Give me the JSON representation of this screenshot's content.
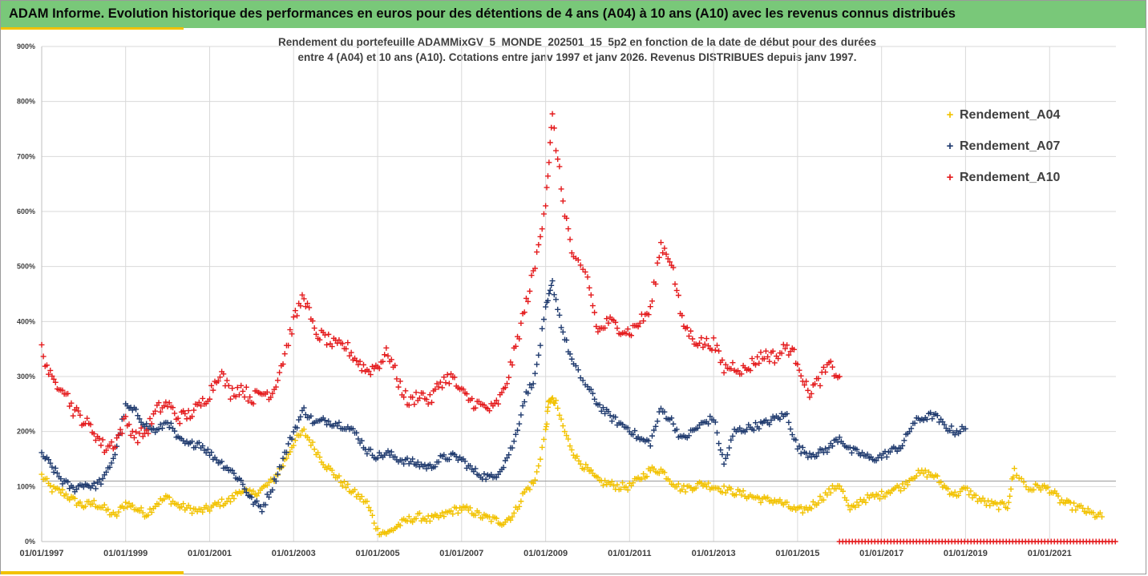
{
  "header": {
    "title": "ADAM Informe. Evolution historique des performances en euros pour des détentions de 4 ans (A04) à 10 ans (A10) avec les revenus connus distribués"
  },
  "chart_data": {
    "type": "scatter",
    "title_lines": [
      "Rendement du portefeuille ADAMMixGV_5_MONDE_202501_15_5p2 en fonction de la date de début pour des durées",
      "entre 4 (A04) et 10 ans (A10). Cotations entre janv 1997 et janv 2026. Revenus DISTRIBUES depuis janv 1997."
    ],
    "x_axis": {
      "type": "date",
      "range": [
        "1997-01-01",
        "2022-08-01"
      ],
      "tick_labels": [
        "01/01/1997",
        "01/01/1999",
        "01/01/2001",
        "01/01/2003",
        "01/01/2005",
        "01/01/2007",
        "01/01/2009",
        "01/01/2011",
        "01/01/2013",
        "01/01/2015",
        "01/01/2017",
        "01/01/2019",
        "01/01/2021"
      ]
    },
    "y_axis": {
      "range": [
        0,
        900
      ],
      "unit": "%",
      "tick_labels": [
        "0%",
        "100%",
        "200%",
        "300%",
        "400%",
        "500%",
        "600%",
        "700%",
        "800%",
        "900%"
      ]
    },
    "grid": "horizontal",
    "legend_position": "right",
    "reference_line": 110,
    "series": [
      {
        "name": "Rendement_A04",
        "color": "#f2c200",
        "points": [
          [
            "1997-01-01",
            120
          ],
          [
            "1997-04-01",
            95
          ],
          [
            "1997-07-01",
            90
          ],
          [
            "1997-10-01",
            75
          ],
          [
            "1998-01-01",
            65
          ],
          [
            "1998-04-01",
            70
          ],
          [
            "1998-07-01",
            60
          ],
          [
            "1998-10-01",
            45
          ],
          [
            "1999-01-01",
            70
          ],
          [
            "1999-04-01",
            60
          ],
          [
            "1999-07-01",
            50
          ],
          [
            "1999-10-01",
            70
          ],
          [
            "2000-01-01",
            80
          ],
          [
            "2000-04-01",
            65
          ],
          [
            "2000-07-01",
            60
          ],
          [
            "2000-10-01",
            55
          ],
          [
            "2001-01-01",
            60
          ],
          [
            "2001-04-01",
            70
          ],
          [
            "2001-07-01",
            75
          ],
          [
            "2001-10-01",
            95
          ],
          [
            "2002-01-01",
            85
          ],
          [
            "2002-04-01",
            95
          ],
          [
            "2002-07-01",
            110
          ],
          [
            "2002-10-01",
            140
          ],
          [
            "2003-01-01",
            180
          ],
          [
            "2003-04-01",
            200
          ],
          [
            "2003-07-01",
            170
          ],
          [
            "2003-10-01",
            140
          ],
          [
            "2004-01-01",
            120
          ],
          [
            "2004-04-01",
            100
          ],
          [
            "2004-07-01",
            85
          ],
          [
            "2004-10-01",
            70
          ],
          [
            "2005-01-01",
            20
          ],
          [
            "2005-04-01",
            15
          ],
          [
            "2005-07-01",
            30
          ],
          [
            "2005-10-01",
            40
          ],
          [
            "2006-01-01",
            45
          ],
          [
            "2006-04-01",
            40
          ],
          [
            "2006-07-01",
            45
          ],
          [
            "2006-10-01",
            55
          ],
          [
            "2007-01-01",
            60
          ],
          [
            "2007-04-01",
            55
          ],
          [
            "2007-07-01",
            45
          ],
          [
            "2007-10-01",
            40
          ],
          [
            "2008-01-01",
            35
          ],
          [
            "2008-04-01",
            50
          ],
          [
            "2008-07-01",
            90
          ],
          [
            "2008-10-01",
            110
          ],
          [
            "2009-01-01",
            200
          ],
          [
            "2009-02-01",
            260
          ],
          [
            "2009-04-01",
            250
          ],
          [
            "2009-07-01",
            190
          ],
          [
            "2009-10-01",
            150
          ],
          [
            "2010-01-01",
            130
          ],
          [
            "2010-04-01",
            110
          ],
          [
            "2010-07-01",
            105
          ],
          [
            "2010-10-01",
            100
          ],
          [
            "2011-01-01",
            100
          ],
          [
            "2011-04-01",
            115
          ],
          [
            "2011-07-01",
            130
          ],
          [
            "2011-10-01",
            130
          ],
          [
            "2012-01-01",
            110
          ],
          [
            "2012-04-01",
            95
          ],
          [
            "2012-07-01",
            100
          ],
          [
            "2012-10-01",
            105
          ],
          [
            "2013-01-01",
            100
          ],
          [
            "2013-04-01",
            95
          ],
          [
            "2013-07-01",
            90
          ],
          [
            "2013-10-01",
            85
          ],
          [
            "2014-01-01",
            80
          ],
          [
            "2014-04-01",
            75
          ],
          [
            "2014-07-01",
            75
          ],
          [
            "2014-10-01",
            65
          ],
          [
            "2015-01-01",
            55
          ],
          [
            "2015-04-01",
            60
          ],
          [
            "2015-07-01",
            75
          ],
          [
            "2015-10-01",
            90
          ],
          [
            "2016-01-01",
            105
          ],
          [
            "2016-04-01",
            55
          ],
          [
            "2016-07-01",
            75
          ],
          [
            "2016-10-01",
            80
          ],
          [
            "2017-01-01",
            85
          ],
          [
            "2017-04-01",
            95
          ],
          [
            "2017-07-01",
            100
          ],
          [
            "2017-10-01",
            120
          ],
          [
            "2018-01-01",
            125
          ],
          [
            "2018-04-01",
            120
          ],
          [
            "2018-07-01",
            100
          ],
          [
            "2018-10-01",
            85
          ],
          [
            "2019-01-01",
            95
          ],
          [
            "2019-04-01",
            80
          ],
          [
            "2019-07-01",
            70
          ],
          [
            "2019-10-01",
            65
          ],
          [
            "2020-01-01",
            65
          ],
          [
            "2020-03-01",
            130
          ],
          [
            "2020-07-01",
            95
          ],
          [
            "2020-10-01",
            100
          ],
          [
            "2021-01-01",
            95
          ],
          [
            "2021-04-01",
            75
          ],
          [
            "2021-07-01",
            65
          ],
          [
            "2021-10-01",
            60
          ],
          [
            "2022-01-01",
            50
          ],
          [
            "2022-04-01",
            45
          ]
        ]
      },
      {
        "name": "Rendement_A07",
        "color": "#1f3a6e",
        "points": [
          [
            "1997-01-01",
            160
          ],
          [
            "1997-04-01",
            135
          ],
          [
            "1997-07-01",
            110
          ],
          [
            "1997-10-01",
            95
          ],
          [
            "1998-01-01",
            105
          ],
          [
            "1998-04-01",
            100
          ],
          [
            "1998-07-01",
            115
          ],
          [
            "1998-10-01",
            160
          ],
          [
            "1999-01-01",
            245
          ],
          [
            "1999-04-01",
            235
          ],
          [
            "1999-07-01",
            210
          ],
          [
            "1999-10-01",
            200
          ],
          [
            "2000-01-01",
            220
          ],
          [
            "2000-04-01",
            185
          ],
          [
            "2000-07-01",
            175
          ],
          [
            "2000-10-01",
            180
          ],
          [
            "2001-01-01",
            160
          ],
          [
            "2001-04-01",
            145
          ],
          [
            "2001-07-01",
            130
          ],
          [
            "2001-10-01",
            110
          ],
          [
            "2002-01-01",
            75
          ],
          [
            "2002-04-01",
            60
          ],
          [
            "2002-07-01",
            100
          ],
          [
            "2002-10-01",
            150
          ],
          [
            "2003-01-01",
            200
          ],
          [
            "2003-04-01",
            240
          ],
          [
            "2003-07-01",
            215
          ],
          [
            "2003-10-01",
            220
          ],
          [
            "2004-01-01",
            215
          ],
          [
            "2004-04-01",
            210
          ],
          [
            "2004-07-01",
            195
          ],
          [
            "2004-10-01",
            165
          ],
          [
            "2005-01-01",
            155
          ],
          [
            "2005-04-01",
            160
          ],
          [
            "2005-07-01",
            150
          ],
          [
            "2005-10-01",
            145
          ],
          [
            "2006-01-01",
            140
          ],
          [
            "2006-04-01",
            135
          ],
          [
            "2006-07-01",
            150
          ],
          [
            "2006-10-01",
            155
          ],
          [
            "2007-01-01",
            150
          ],
          [
            "2007-04-01",
            130
          ],
          [
            "2007-07-01",
            120
          ],
          [
            "2007-10-01",
            115
          ],
          [
            "2008-01-01",
            140
          ],
          [
            "2008-04-01",
            180
          ],
          [
            "2008-07-01",
            260
          ],
          [
            "2008-10-01",
            300
          ],
          [
            "2009-01-01",
            420
          ],
          [
            "2009-03-01",
            470
          ],
          [
            "2009-06-01",
            380
          ],
          [
            "2009-09-01",
            320
          ],
          [
            "2010-01-01",
            280
          ],
          [
            "2010-04-01",
            250
          ],
          [
            "2010-07-01",
            230
          ],
          [
            "2010-10-01",
            215
          ],
          [
            "2011-01-01",
            205
          ],
          [
            "2011-04-01",
            185
          ],
          [
            "2011-07-01",
            180
          ],
          [
            "2011-10-01",
            240
          ],
          [
            "2012-01-01",
            220
          ],
          [
            "2012-04-01",
            185
          ],
          [
            "2012-07-01",
            200
          ],
          [
            "2012-10-01",
            215
          ],
          [
            "2013-01-01",
            225
          ],
          [
            "2013-04-01",
            140
          ],
          [
            "2013-07-01",
            200
          ],
          [
            "2013-10-01",
            205
          ],
          [
            "2014-01-01",
            210
          ],
          [
            "2014-04-01",
            215
          ],
          [
            "2014-07-01",
            225
          ],
          [
            "2014-10-01",
            230
          ],
          [
            "2015-01-01",
            170
          ],
          [
            "2015-04-01",
            160
          ],
          [
            "2015-07-01",
            160
          ],
          [
            "2015-10-01",
            170
          ],
          [
            "2016-01-01",
            190
          ],
          [
            "2016-04-01",
            165
          ],
          [
            "2016-07-01",
            160
          ],
          [
            "2016-10-01",
            150
          ],
          [
            "2017-01-01",
            155
          ],
          [
            "2017-04-01",
            165
          ],
          [
            "2017-07-01",
            175
          ],
          [
            "2017-10-01",
            215
          ],
          [
            "2018-01-01",
            225
          ],
          [
            "2018-04-01",
            230
          ],
          [
            "2018-07-01",
            210
          ],
          [
            "2018-10-01",
            200
          ],
          [
            "2019-01-01",
            205
          ]
        ]
      },
      {
        "name": "Rendement_A10",
        "color": "#e41a1c",
        "points": [
          [
            "1997-01-01",
            350
          ],
          [
            "1997-04-01",
            290
          ],
          [
            "1997-07-01",
            285
          ],
          [
            "1997-10-01",
            240
          ],
          [
            "1998-01-01",
            220
          ],
          [
            "1998-04-01",
            200
          ],
          [
            "1998-07-01",
            170
          ],
          [
            "1998-10-01",
            180
          ],
          [
            "1999-01-01",
            220
          ],
          [
            "1999-04-01",
            190
          ],
          [
            "1999-07-01",
            200
          ],
          [
            "1999-10-01",
            240
          ],
          [
            "2000-01-01",
            250
          ],
          [
            "2000-04-01",
            225
          ],
          [
            "2000-07-01",
            230
          ],
          [
            "2000-10-01",
            245
          ],
          [
            "2001-01-01",
            270
          ],
          [
            "2001-04-01",
            310
          ],
          [
            "2001-07-01",
            270
          ],
          [
            "2001-10-01",
            280
          ],
          [
            "2002-01-01",
            260
          ],
          [
            "2002-04-01",
            270
          ],
          [
            "2002-07-01",
            270
          ],
          [
            "2002-10-01",
            330
          ],
          [
            "2003-01-01",
            400
          ],
          [
            "2003-04-01",
            450
          ],
          [
            "2003-07-01",
            380
          ],
          [
            "2003-10-01",
            370
          ],
          [
            "2004-01-01",
            355
          ],
          [
            "2004-04-01",
            355
          ],
          [
            "2004-07-01",
            330
          ],
          [
            "2004-10-01",
            310
          ],
          [
            "2005-01-01",
            320
          ],
          [
            "2005-04-01",
            345
          ],
          [
            "2005-07-01",
            290
          ],
          [
            "2005-10-01",
            250
          ],
          [
            "2006-01-01",
            270
          ],
          [
            "2006-04-01",
            255
          ],
          [
            "2006-07-01",
            290
          ],
          [
            "2006-10-01",
            300
          ],
          [
            "2007-01-01",
            270
          ],
          [
            "2007-04-01",
            255
          ],
          [
            "2007-07-01",
            245
          ],
          [
            "2007-10-01",
            240
          ],
          [
            "2008-01-01",
            270
          ],
          [
            "2008-04-01",
            340
          ],
          [
            "2008-07-01",
            420
          ],
          [
            "2008-10-01",
            500
          ],
          [
            "2009-01-01",
            620
          ],
          [
            "2009-03-01",
            770
          ],
          [
            "2009-06-01",
            620
          ],
          [
            "2009-09-01",
            510
          ],
          [
            "2010-01-01",
            480
          ],
          [
            "2010-04-01",
            380
          ],
          [
            "2010-07-01",
            400
          ],
          [
            "2010-10-01",
            390
          ],
          [
            "2011-01-01",
            380
          ],
          [
            "2011-04-01",
            400
          ],
          [
            "2011-07-01",
            420
          ],
          [
            "2011-10-01",
            540
          ],
          [
            "2012-01-01",
            510
          ],
          [
            "2012-04-01",
            400
          ],
          [
            "2012-07-01",
            370
          ],
          [
            "2012-10-01",
            360
          ],
          [
            "2013-01-01",
            360
          ],
          [
            "2013-04-01",
            315
          ],
          [
            "2013-07-01",
            320
          ],
          [
            "2013-10-01",
            310
          ],
          [
            "2014-01-01",
            330
          ],
          [
            "2014-04-01",
            340
          ],
          [
            "2014-07-01",
            335
          ],
          [
            "2014-10-01",
            355
          ],
          [
            "2015-01-01",
            330
          ],
          [
            "2015-04-01",
            270
          ],
          [
            "2015-07-01",
            290
          ],
          [
            "2015-10-01",
            320
          ],
          [
            "2016-01-01",
            300
          ]
        ]
      }
    ],
    "flat_segment": {
      "series": "Rendement_A10",
      "value": 0,
      "range": [
        "2016-01-01",
        "2022-08-01"
      ]
    }
  }
}
